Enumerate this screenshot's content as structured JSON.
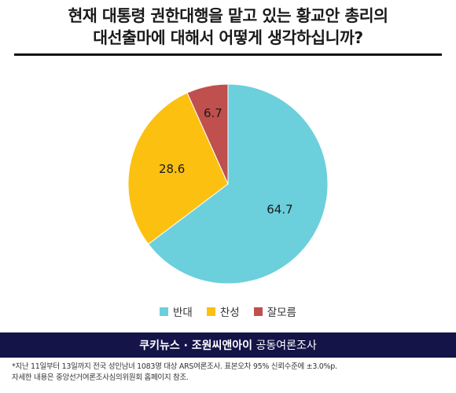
{
  "title": {
    "line1": "현재 대통령 권한대행을 맡고 있는 황교안 총리의",
    "line2": "대선출마에 대해서 어떻게 생각하십니까?"
  },
  "chart_data": {
    "type": "pie",
    "title": "현재 대통령 권한대행을 맡고 있는 황교안 총리의 대선출마에 대해서 어떻게 생각하십니까?",
    "slices": [
      {
        "label": "반대",
        "value": 64.7,
        "color": "#6ccfdc"
      },
      {
        "label": "찬성",
        "value": 28.6,
        "color": "#fcc010"
      },
      {
        "label": "잘모름",
        "value": 6.7,
        "color": "#c0504d"
      }
    ],
    "legend_position": "bottom",
    "data_labels": [
      "64.7",
      "28.6",
      "6.7"
    ]
  },
  "banner": {
    "bold": "쿠키뉴스 · 조원씨앤아이",
    "normal": " 공동여론조사"
  },
  "footnote": {
    "line1": "*지난 11일부터 13일까지 전국 성인남녀 1083명 대상 ARS여론조사. 표본오차 95% 신뢰수준에 ±3.0%p.",
    "line2": "자세한 내용은 중앙선거여론조사심의위원회 홈페이지 참조."
  }
}
